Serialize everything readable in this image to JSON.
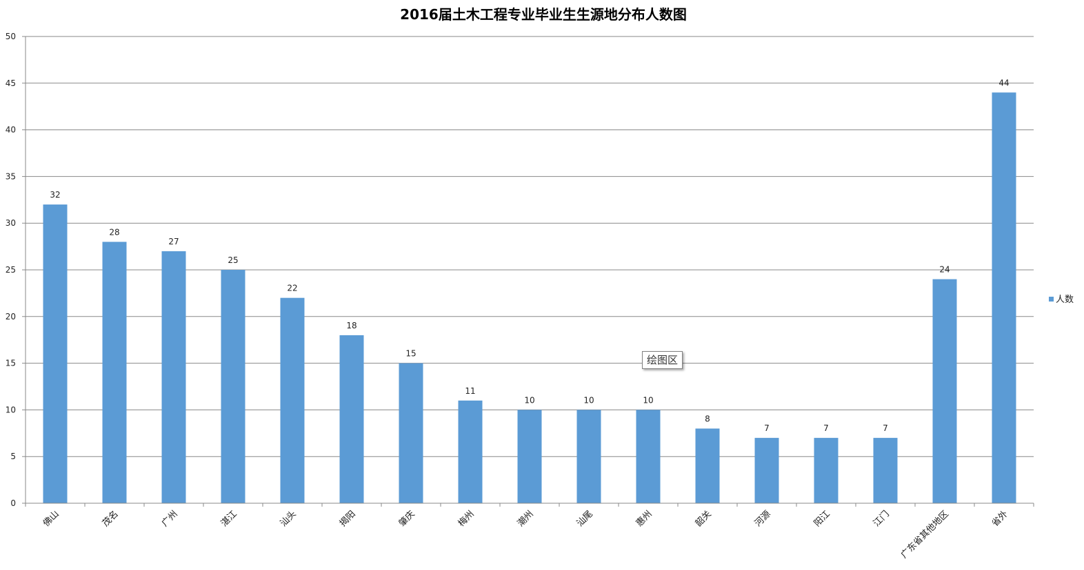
{
  "chart_data": {
    "type": "bar",
    "title": "2016届土木工程专业毕业生生源地分布人数图",
    "xlabel": "",
    "ylabel": "",
    "ylim": [
      0,
      50
    ],
    "y_ticks": [
      0,
      5,
      10,
      15,
      20,
      25,
      30,
      35,
      40,
      45,
      50
    ],
    "categories": [
      "佛山",
      "茂名",
      "广州",
      "湛江",
      "汕头",
      "揭阳",
      "肇庆",
      "梅州",
      "潮州",
      "汕尾",
      "惠州",
      "韶关",
      "河源",
      "阳江",
      "江门",
      "广东省其他地区",
      "省外"
    ],
    "series": [
      {
        "name": "人数",
        "values": [
          32,
          28,
          27,
          25,
          22,
          18,
          15,
          11,
          10,
          10,
          10,
          8,
          7,
          7,
          7,
          24,
          44
        ]
      }
    ],
    "grid": true,
    "legend": "right",
    "data_labels": true
  },
  "colors": {
    "bar": "#5B9BD5",
    "grid": "#888888",
    "axis": "#888888"
  },
  "tooltip": {
    "text": "绘图区"
  }
}
